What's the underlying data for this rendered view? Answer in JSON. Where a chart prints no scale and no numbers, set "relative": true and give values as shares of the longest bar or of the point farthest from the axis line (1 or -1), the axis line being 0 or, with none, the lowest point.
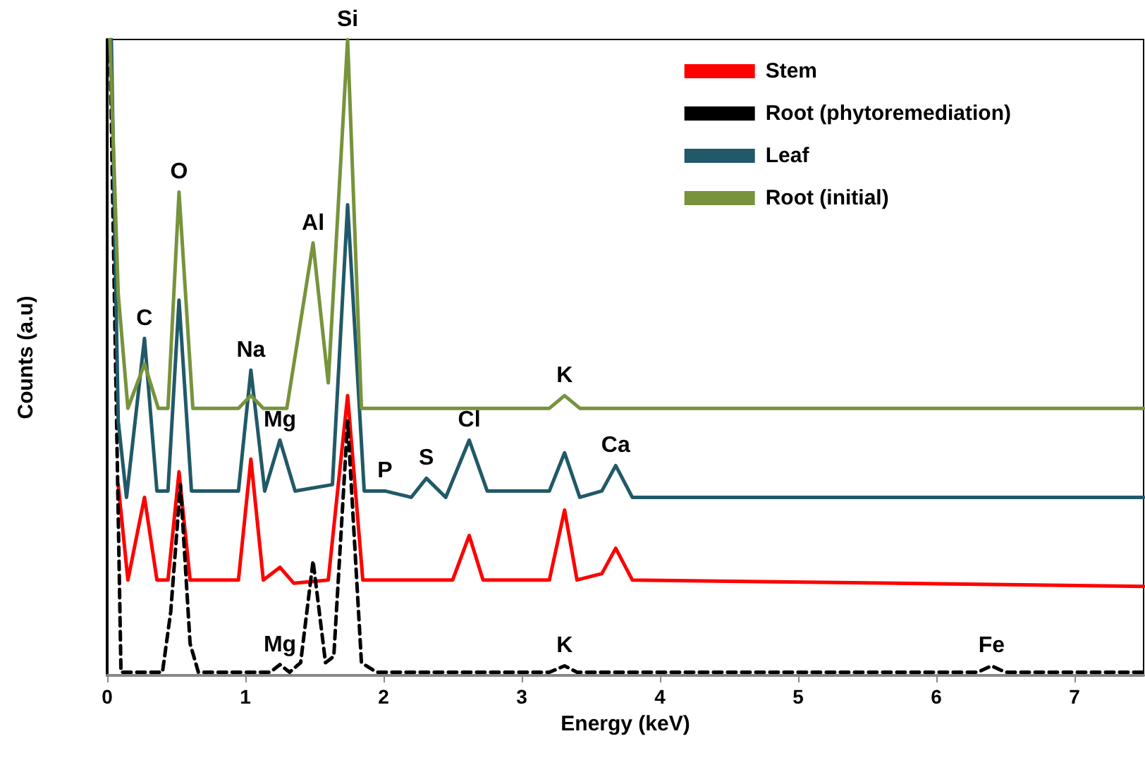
{
  "chart_data": {
    "type": "line",
    "relative": true,
    "xlabel": "Energy (keV)",
    "ylabel": "Counts (a.u)",
    "xlim": [
      0,
      7.5
    ],
    "xticks": [
      0,
      1,
      2,
      3,
      4,
      5,
      6,
      7
    ],
    "grid": false,
    "legend": "top right",
    "marker": "none",
    "series": [
      {
        "name": "Stem",
        "color": "#ff0000",
        "line_style": "solid",
        "x": [
          0.08,
          0.15,
          0.27,
          0.36,
          0.44,
          0.52,
          0.6,
          0.95,
          1.04,
          1.13,
          1.25,
          1.35,
          1.6,
          1.74,
          1.85,
          2.5,
          2.62,
          2.72,
          3.2,
          3.31,
          3.4,
          3.58,
          3.68,
          3.8,
          7.5
        ],
        "values": [
          0.3,
          0.15,
          0.28,
          0.15,
          0.15,
          0.32,
          0.15,
          0.15,
          0.34,
          0.15,
          0.17,
          0.145,
          0.15,
          0.44,
          0.15,
          0.15,
          0.22,
          0.15,
          0.15,
          0.26,
          0.15,
          0.16,
          0.2,
          0.15,
          0.14
        ]
      },
      {
        "name": "Root (phytoremediation)",
        "color": "#000000",
        "line_style": "dashed",
        "x": [
          0.02,
          0.06,
          0.1,
          0.4,
          0.46,
          0.53,
          0.6,
          0.66,
          1.18,
          1.25,
          1.32,
          1.4,
          1.49,
          1.58,
          1.64,
          1.74,
          1.84,
          1.95,
          3.2,
          3.31,
          3.4,
          6.3,
          6.4,
          6.5,
          7.5
        ],
        "values": [
          1,
          0.5,
          0.005,
          0.005,
          0.1,
          0.3,
          0.05,
          0.005,
          0.005,
          0.017,
          0.005,
          0.02,
          0.18,
          0.02,
          0.03,
          0.4,
          0.02,
          0.005,
          0.005,
          0.015,
          0.005,
          0.005,
          0.015,
          0.005,
          0.005
        ]
      },
      {
        "name": "Leaf",
        "color": "#215968",
        "line_style": "solid",
        "x": [
          0.03,
          0.08,
          0.14,
          0.27,
          0.36,
          0.44,
          0.52,
          0.61,
          0.95,
          1.04,
          1.14,
          1.25,
          1.36,
          1.63,
          1.74,
          1.86,
          2.01,
          2.2,
          2.31,
          2.45,
          2.62,
          2.75,
          3.2,
          3.31,
          3.42,
          3.58,
          3.68,
          3.8,
          7.5
        ],
        "values": [
          1,
          0.4,
          0.28,
          0.53,
          0.29,
          0.29,
          0.59,
          0.29,
          0.29,
          0.48,
          0.29,
          0.37,
          0.29,
          0.3,
          0.74,
          0.29,
          0.29,
          0.28,
          0.31,
          0.28,
          0.37,
          0.29,
          0.29,
          0.35,
          0.28,
          0.29,
          0.33,
          0.28,
          0.28
        ]
      },
      {
        "name": "Root (initial)",
        "color": "#77933c",
        "line_style": "solid",
        "x": [
          0.02,
          0.08,
          0.15,
          0.27,
          0.37,
          0.44,
          0.52,
          0.62,
          0.95,
          1.04,
          1.13,
          1.3,
          1.49,
          1.6,
          1.74,
          1.84,
          3.2,
          3.31,
          3.42,
          7.5
        ],
        "values": [
          1,
          0.6,
          0.42,
          0.49,
          0.42,
          0.42,
          0.76,
          0.42,
          0.42,
          0.44,
          0.42,
          0.42,
          0.68,
          0.46,
          1,
          0.42,
          0.42,
          0.44,
          0.42,
          0.42
        ]
      }
    ],
    "annotations": [
      {
        "text": "C",
        "x": 0.27,
        "y": 0.53
      },
      {
        "text": "O",
        "x": 0.52,
        "y": 0.76
      },
      {
        "text": "Na",
        "x": 1.04,
        "y": 0.48
      },
      {
        "text": "Al",
        "x": 1.49,
        "y": 0.68
      },
      {
        "text": "Si",
        "x": 1.74,
        "y": 1
      },
      {
        "text": "K",
        "x": 3.31,
        "y": 0.44
      },
      {
        "text": "Mg",
        "x": 1.25,
        "y": 0.37
      },
      {
        "text": "P",
        "x": 2.01,
        "y": 0.29
      },
      {
        "text": "S",
        "x": 2.31,
        "y": 0.31
      },
      {
        "text": "Cl",
        "x": 2.62,
        "y": 0.37
      },
      {
        "text": "Ca",
        "x": 3.68,
        "y": 0.33
      },
      {
        "text": "Mg",
        "x": 1.25,
        "y": 0.017
      },
      {
        "text": "K",
        "x": 3.31,
        "y": 0.015
      },
      {
        "text": "Fe",
        "x": 6.4,
        "y": 0.015
      }
    ]
  }
}
